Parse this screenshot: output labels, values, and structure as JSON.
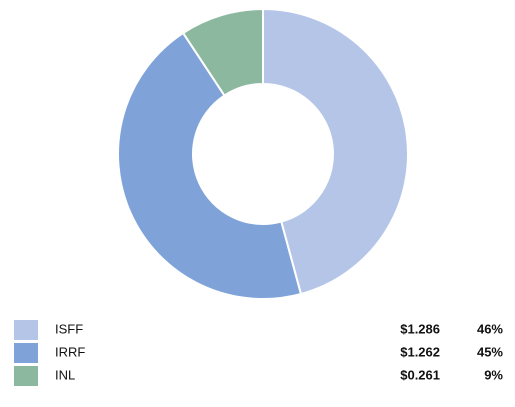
{
  "chart_data": {
    "type": "donut",
    "categories": [
      "ISFF",
      "IRRF",
      "INL"
    ],
    "values": [
      1.286,
      1.262,
      0.261
    ],
    "value_labels": [
      "$1.286",
      "$1.262",
      "$0.261"
    ],
    "percents": [
      46,
      45,
      9
    ],
    "percent_labels": [
      "46%",
      "45%",
      "9%"
    ],
    "colors": [
      "#b4c5e8",
      "#7fa3d9",
      "#8cb8a0"
    ]
  }
}
